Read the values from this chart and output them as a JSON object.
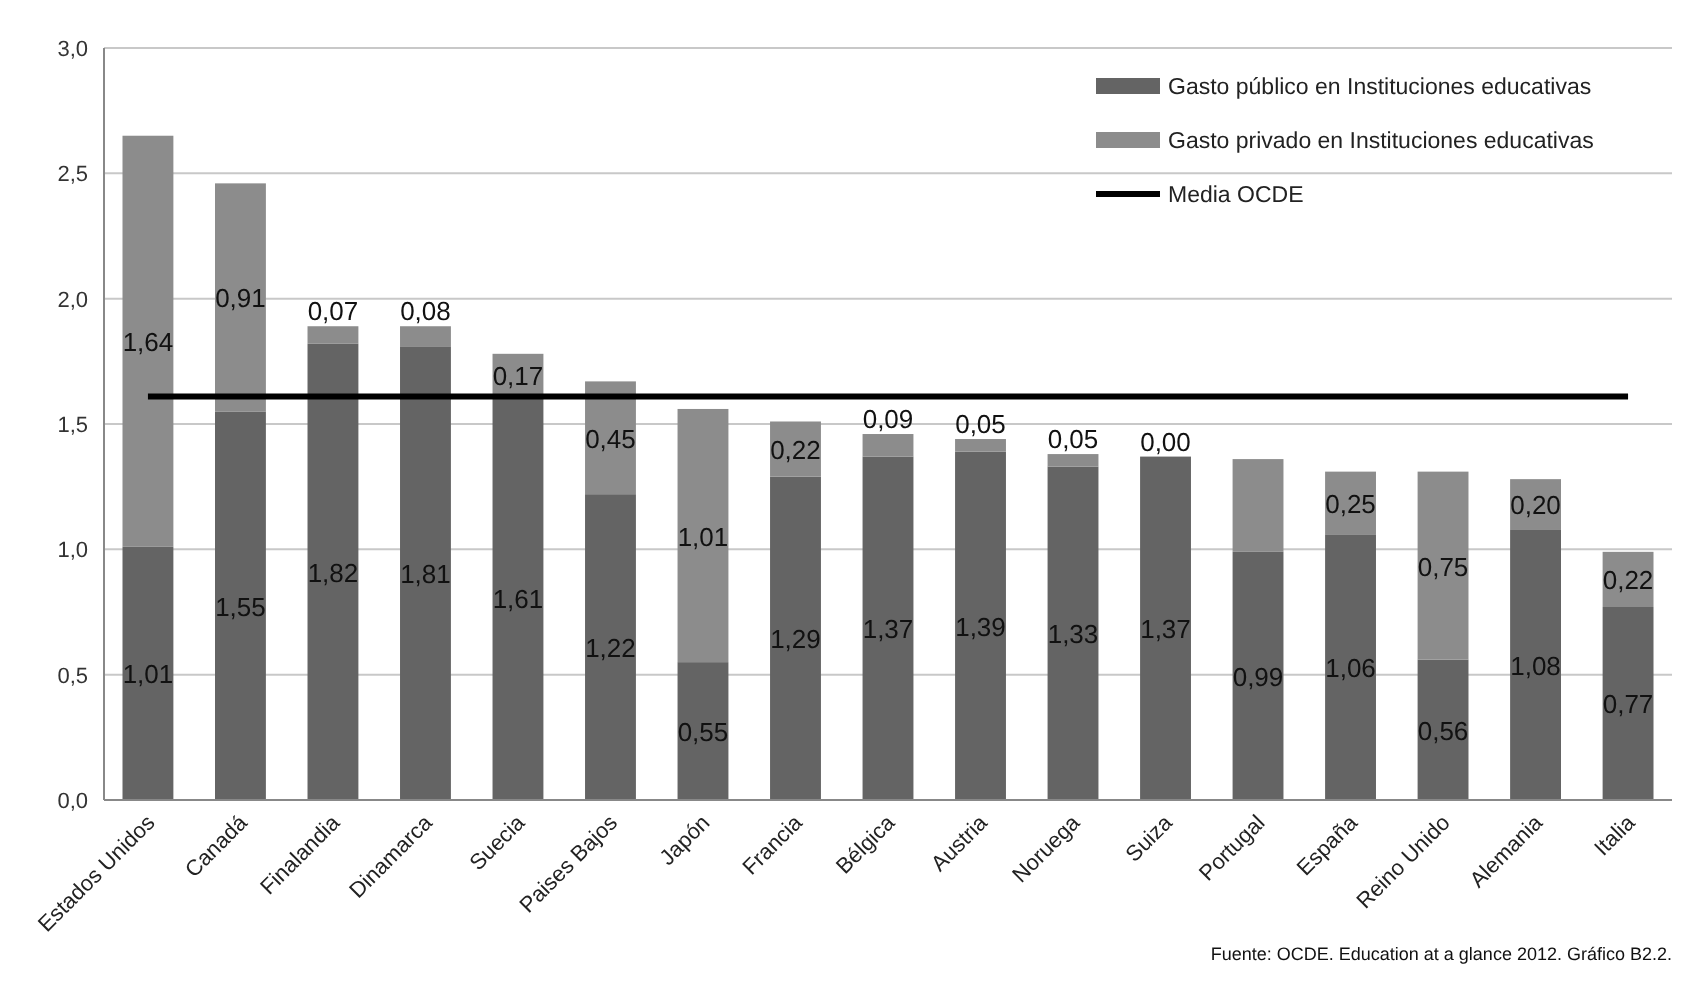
{
  "chart_data": {
    "type": "bar",
    "stacked": true,
    "categories": [
      "Estados Unidos",
      "Canadá",
      "Finalandia",
      "Dinamarca",
      "Suecia",
      "Paises Bajos",
      "Japón",
      "Francia",
      "Bélgica",
      "Austria",
      "Noruega",
      "Suiza",
      "Portugal",
      "España",
      "Reino Unido",
      "Alemania",
      "Italia"
    ],
    "series": [
      {
        "name": "Gasto público en Instituciones educativas",
        "color": "#646464",
        "values": [
          1.01,
          1.55,
          1.82,
          1.81,
          1.61,
          1.22,
          0.55,
          1.29,
          1.37,
          1.39,
          1.33,
          1.37,
          0.99,
          1.06,
          0.56,
          1.08,
          0.77
        ],
        "value_labels": [
          "1,01",
          "1,55",
          "1,82",
          "1,81",
          "1,61",
          "1,22",
          "0,55",
          "1,29",
          "1,37",
          "1,39",
          "1,33",
          "1,37",
          "0,99",
          "1,06",
          "0,56",
          "1,08",
          "0,77"
        ]
      },
      {
        "name": "Gasto privado en Instituciones educativas",
        "color": "#8c8c8c",
        "values": [
          1.64,
          0.91,
          0.07,
          0.08,
          0.17,
          0.45,
          1.01,
          0.22,
          0.09,
          0.05,
          0.05,
          0.0,
          0.37,
          0.25,
          0.75,
          0.2,
          0.22
        ],
        "value_labels": [
          "1,64",
          "0,91",
          "0,07",
          "0,08",
          "0,17",
          "0,45",
          "1,01",
          "0,22",
          "0,09",
          "0,05",
          "0,05",
          "0,00",
          null,
          "0,25",
          "0,75",
          "0,20",
          "0,22"
        ]
      }
    ],
    "ylim": [
      0,
      3
    ],
    "yticks": [
      {
        "value": 0,
        "label": "0,0"
      },
      {
        "value": 0.5,
        "label": "0,5"
      },
      {
        "value": 1,
        "label": "1,0"
      },
      {
        "value": 1.5,
        "label": "1,5"
      },
      {
        "value": 2,
        "label": "2,0"
      },
      {
        "value": 2.5,
        "label": "2,5"
      },
      {
        "value": 3,
        "label": "3,0"
      }
    ],
    "grid": "y",
    "legend": "top right",
    "ref_lines": [
      {
        "axis": "y",
        "value": 1.61,
        "label": "Media OCDE",
        "color": "#000000"
      }
    ],
    "annotations": [
      "Fuente: OCDE. Education at a glance 2012. Gráfico B2.2."
    ]
  }
}
